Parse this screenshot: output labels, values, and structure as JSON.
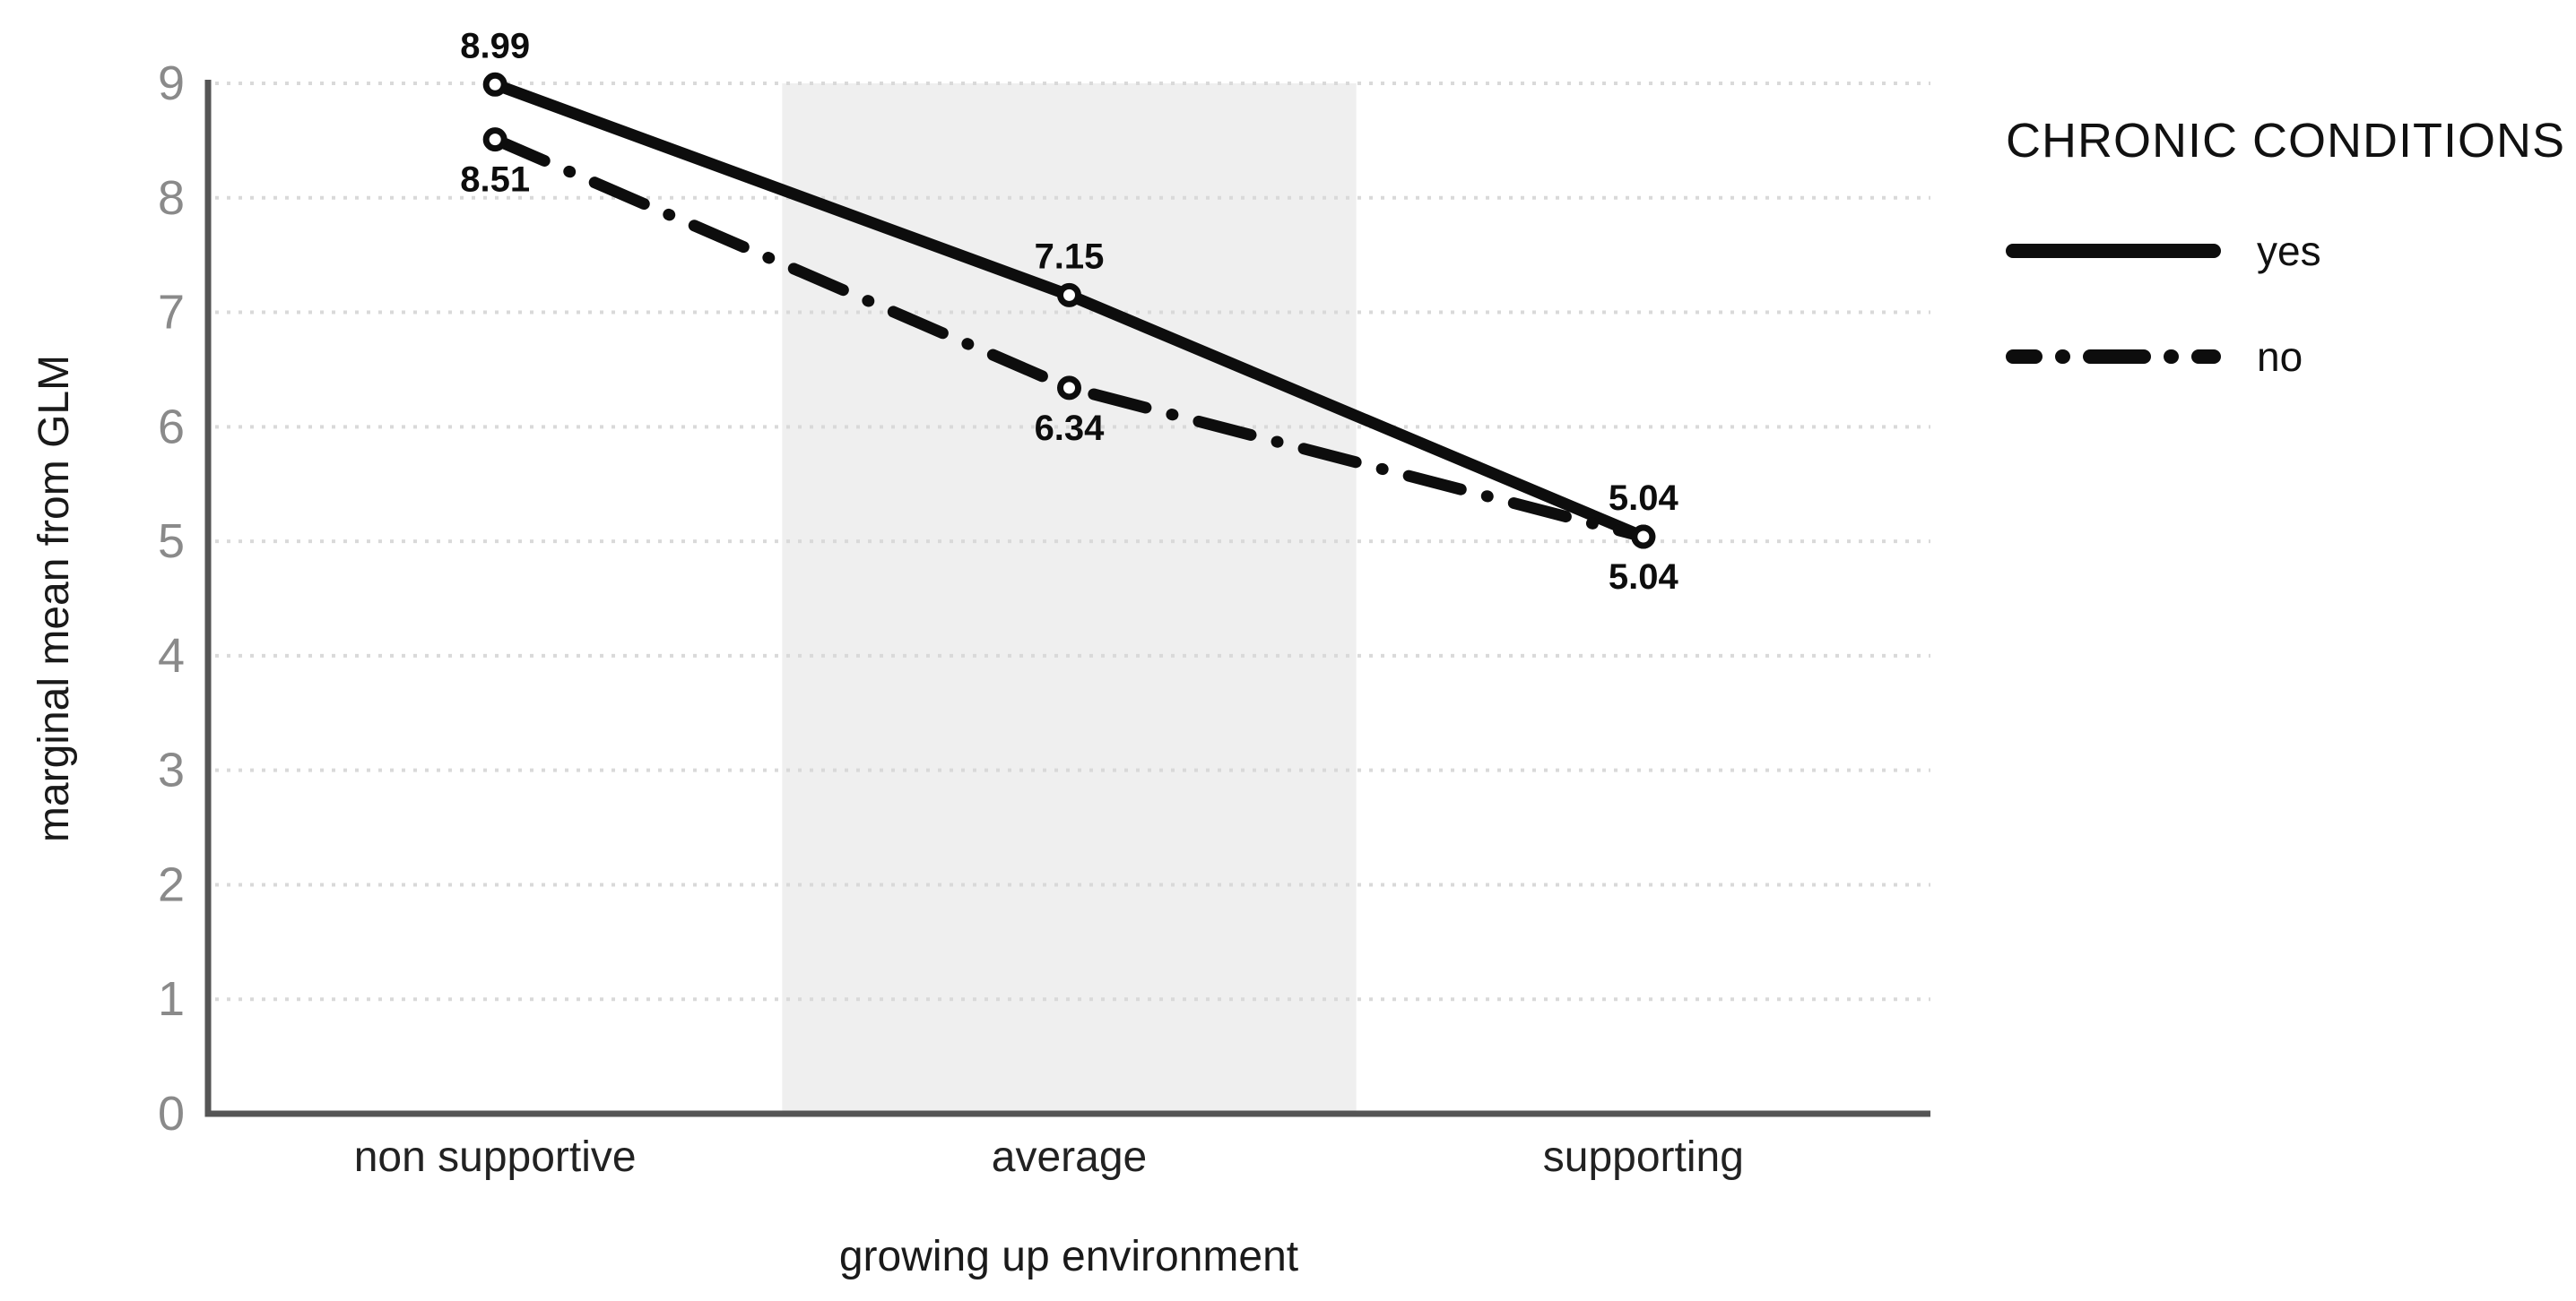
{
  "chart_data": {
    "type": "line",
    "title": "",
    "legend_title": "CHRONIC CONDITIONS",
    "legend_position": "right-top",
    "categories": [
      "non supportive",
      "average",
      "supporting"
    ],
    "series": [
      {
        "name": "yes",
        "line_style": "solid",
        "values": [
          8.99,
          7.15,
          5.04
        ]
      },
      {
        "name": "no",
        "line_style": "dash-dot",
        "values": [
          8.51,
          6.34,
          5.04
        ]
      }
    ],
    "xlabel": "growing up environment",
    "ylabel": "marginal mean from GLM",
    "ylim": [
      0,
      9
    ],
    "ytick_step": 1,
    "yticks": [
      0,
      1,
      2,
      3,
      4,
      5,
      6,
      7,
      8,
      9
    ],
    "grid": "horizontal dotted",
    "highlight_band_category": "average",
    "data_labels": true,
    "data_label_format": "0.00"
  },
  "colors": {
    "background": "#ffffff",
    "series_line": "#0d0d0d",
    "marker_fill": "#ffffff",
    "axis_line": "#555555",
    "grid_line": "#d9d9d9",
    "highlight_band": "#efefef",
    "y_tick_text": "#8a8a8a",
    "x_tick_text": "#222222",
    "axis_title_text": "#1a1a1a",
    "legend_text": "#111111"
  }
}
